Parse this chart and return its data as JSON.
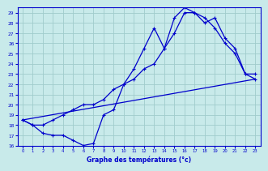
{
  "xlabel": "Graphe des températures (°c)",
  "background_color": "#c8eaea",
  "grid_color": "#a0cccc",
  "line_color": "#0000cc",
  "ylim": [
    16,
    29.5
  ],
  "xlim": [
    -0.5,
    23.5
  ],
  "yticks": [
    16,
    17,
    18,
    19,
    20,
    21,
    22,
    23,
    24,
    25,
    26,
    27,
    28,
    29
  ],
  "xticks": [
    0,
    1,
    2,
    3,
    4,
    5,
    6,
    7,
    8,
    9,
    10,
    11,
    12,
    13,
    14,
    15,
    16,
    17,
    18,
    19,
    20,
    21,
    22,
    23
  ],
  "line1_x": [
    0,
    1,
    2,
    3,
    4,
    5,
    6,
    7,
    8,
    9,
    10,
    11,
    12,
    13,
    14,
    15,
    16,
    17,
    18,
    19,
    20,
    21,
    22,
    23
  ],
  "line1_y": [
    18.5,
    18.0,
    17.2,
    17.0,
    17.0,
    16.5,
    16.0,
    16.2,
    19.0,
    19.5,
    22.0,
    23.5,
    25.5,
    27.5,
    25.5,
    28.5,
    29.5,
    29.0,
    28.5,
    27.5,
    26.0,
    25.0,
    23.0,
    23.0
  ],
  "line2_x": [
    0,
    1,
    2,
    3,
    4,
    5,
    6,
    7,
    8,
    9,
    10,
    11,
    12,
    13,
    14,
    15,
    16,
    17,
    18,
    19,
    20,
    21,
    22,
    23
  ],
  "line2_y": [
    18.5,
    18.0,
    18.0,
    18.5,
    19.0,
    19.5,
    20.0,
    20.0,
    20.5,
    21.5,
    22.0,
    22.5,
    23.5,
    24.0,
    25.5,
    27.0,
    29.0,
    29.0,
    28.0,
    28.5,
    26.5,
    25.5,
    23.0,
    22.5
  ],
  "line3_x": [
    0,
    23
  ],
  "line3_y": [
    18.5,
    22.5
  ]
}
